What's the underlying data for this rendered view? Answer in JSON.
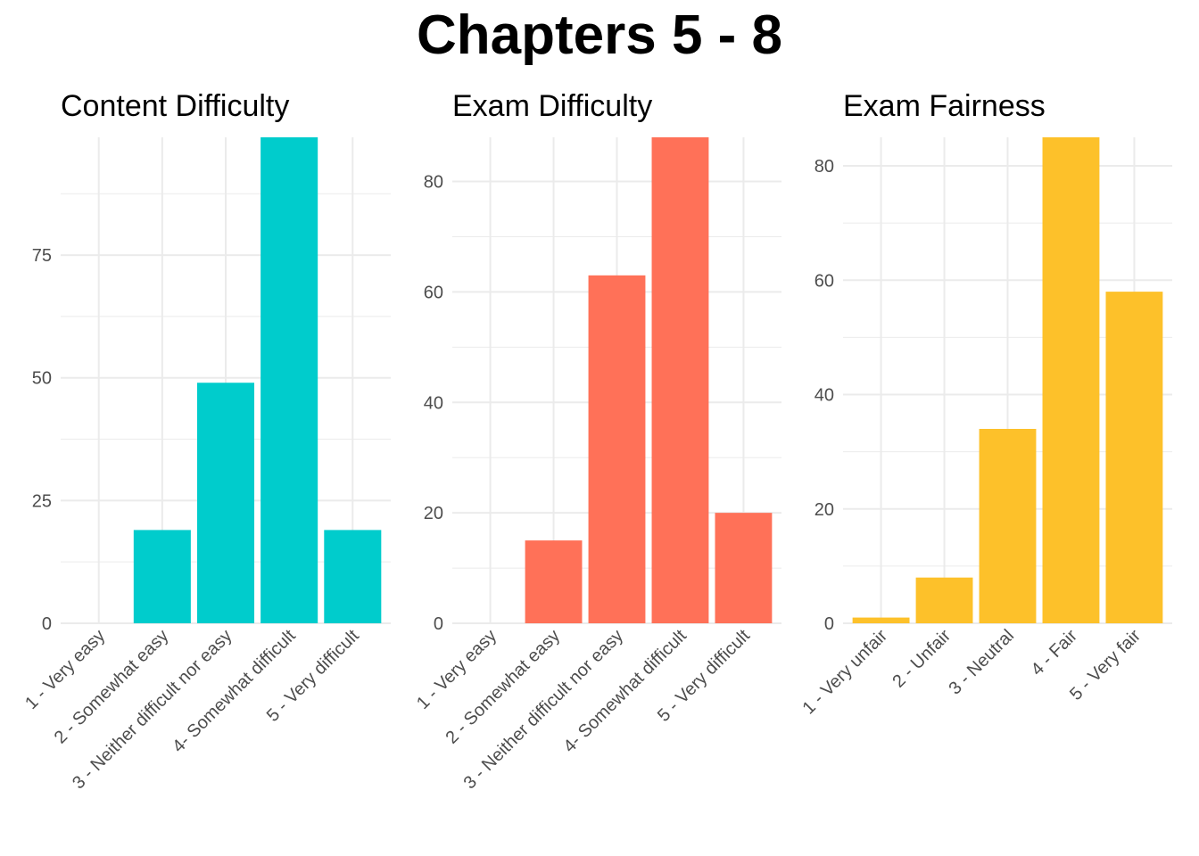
{
  "title": "Chapters 5 - 8",
  "chart_data": [
    {
      "type": "bar",
      "title": "Content Difficulty",
      "color": "#00CCCC",
      "categories": [
        "1 - Very easy",
        "2 - Somewhat easy",
        "3 - Neither difficult nor easy",
        "4- Somewhat difficult",
        "5 - Very difficult"
      ],
      "values": [
        0,
        19,
        49,
        99,
        19
      ],
      "ylim": [
        0,
        99
      ],
      "yticks": [
        0,
        25,
        50,
        75
      ],
      "minor_step": 12.5
    },
    {
      "type": "bar",
      "title": "Exam Difficulty",
      "color": "#FF7158",
      "categories": [
        "1 - Very easy",
        "2 - Somewhat easy",
        "3 - Neither difficult nor easy",
        "4- Somewhat difficult",
        "5 - Very difficult"
      ],
      "values": [
        0,
        15,
        63,
        88,
        20
      ],
      "ylim": [
        0,
        88
      ],
      "yticks": [
        0,
        20,
        40,
        60,
        80
      ],
      "minor_step": 10
    },
    {
      "type": "bar",
      "title": "Exam Fairness",
      "color": "#FDC12A",
      "categories": [
        "1 - Very unfair",
        "2 - Unfair",
        "3 - Neutral",
        "4 - Fair",
        "5 - Very fair"
      ],
      "values": [
        1,
        8,
        34,
        85,
        58
      ],
      "ylim": [
        0,
        85
      ],
      "yticks": [
        0,
        20,
        40,
        60,
        80
      ],
      "minor_step": 10
    }
  ]
}
